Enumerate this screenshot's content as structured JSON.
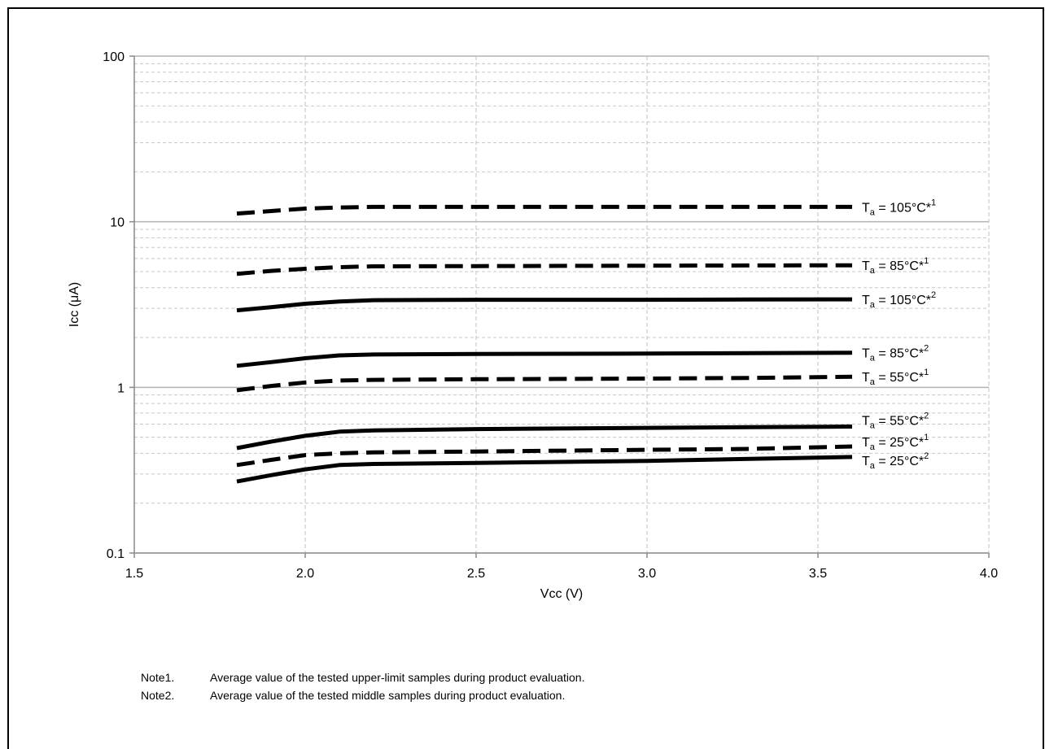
{
  "chart_data": {
    "type": "line",
    "xlabel": "Vcc (V)",
    "ylabel": "Icc (μA)",
    "xlim": [
      1.5,
      4.0
    ],
    "ylim": [
      0.1,
      100
    ],
    "yscale": "log",
    "x_ticks": [
      "1.5",
      "2.0",
      "2.5",
      "3.0",
      "3.5",
      "4.0"
    ],
    "y_ticks": [
      "0.1",
      "1",
      "10",
      "100"
    ],
    "grid": true,
    "series": [
      {
        "label_main": "T",
        "label_sub": "a",
        "label_rest": " = 105°C*",
        "label_sup": "1",
        "style": "dashed",
        "points": [
          [
            1.8,
            11.2
          ],
          [
            1.9,
            11.6
          ],
          [
            2.0,
            12.0
          ],
          [
            2.1,
            12.2
          ],
          [
            2.2,
            12.3
          ],
          [
            2.5,
            12.3
          ],
          [
            3.0,
            12.3
          ],
          [
            3.3,
            12.3
          ],
          [
            3.6,
            12.3
          ]
        ]
      },
      {
        "label_main": "T",
        "label_sub": "a",
        "label_rest": " = 85°C*",
        "label_sup": "1",
        "style": "dashed",
        "points": [
          [
            1.8,
            4.85
          ],
          [
            1.9,
            5.05
          ],
          [
            2.0,
            5.2
          ],
          [
            2.1,
            5.32
          ],
          [
            2.2,
            5.38
          ],
          [
            2.5,
            5.4
          ],
          [
            3.0,
            5.43
          ],
          [
            3.3,
            5.45
          ],
          [
            3.6,
            5.46
          ]
        ]
      },
      {
        "label_main": "T",
        "label_sub": "a",
        "label_rest": " = 105°C*",
        "label_sup": "2",
        "style": "solid",
        "points": [
          [
            1.8,
            2.92
          ],
          [
            1.9,
            3.05
          ],
          [
            2.0,
            3.2
          ],
          [
            2.1,
            3.3
          ],
          [
            2.2,
            3.36
          ],
          [
            2.5,
            3.38
          ],
          [
            3.0,
            3.38
          ],
          [
            3.3,
            3.39
          ],
          [
            3.6,
            3.4
          ]
        ]
      },
      {
        "label_main": "T",
        "label_sub": "a",
        "label_rest": " = 85°C*",
        "label_sup": "2",
        "style": "solid",
        "points": [
          [
            1.8,
            1.35
          ],
          [
            1.9,
            1.42
          ],
          [
            2.0,
            1.5
          ],
          [
            2.1,
            1.56
          ],
          [
            2.2,
            1.58
          ],
          [
            2.5,
            1.59
          ],
          [
            3.0,
            1.6
          ],
          [
            3.3,
            1.61
          ],
          [
            3.6,
            1.62
          ]
        ]
      },
      {
        "label_main": "T",
        "label_sub": "a",
        "label_rest": " = 55°C*",
        "label_sup": "1",
        "style": "dashed",
        "points": [
          [
            1.8,
            0.96
          ],
          [
            1.9,
            1.02
          ],
          [
            2.0,
            1.07
          ],
          [
            2.1,
            1.1
          ],
          [
            2.2,
            1.11
          ],
          [
            2.5,
            1.12
          ],
          [
            3.0,
            1.13
          ],
          [
            3.3,
            1.14
          ],
          [
            3.6,
            1.16
          ]
        ]
      },
      {
        "label_main": "T",
        "label_sub": "a",
        "label_rest": " = 55°C*",
        "label_sup": "2",
        "style": "solid",
        "points": [
          [
            1.8,
            0.43
          ],
          [
            1.9,
            0.47
          ],
          [
            2.0,
            0.51
          ],
          [
            2.1,
            0.54
          ],
          [
            2.2,
            0.55
          ],
          [
            2.5,
            0.56
          ],
          [
            3.0,
            0.57
          ],
          [
            3.3,
            0.575
          ],
          [
            3.6,
            0.58
          ]
        ]
      },
      {
        "label_main": "T",
        "label_sub": "a",
        "label_rest": " = 25°C*",
        "label_sup": "1",
        "style": "dashed",
        "points": [
          [
            1.8,
            0.34
          ],
          [
            1.9,
            0.365
          ],
          [
            2.0,
            0.39
          ],
          [
            2.1,
            0.4
          ],
          [
            2.2,
            0.405
          ],
          [
            2.5,
            0.41
          ],
          [
            3.0,
            0.42
          ],
          [
            3.3,
            0.425
          ],
          [
            3.6,
            0.44
          ]
        ]
      },
      {
        "label_main": "T",
        "label_sub": "a",
        "label_rest": " = 25°C*",
        "label_sup": "2",
        "style": "solid",
        "points": [
          [
            1.8,
            0.27
          ],
          [
            1.9,
            0.295
          ],
          [
            2.0,
            0.32
          ],
          [
            2.1,
            0.34
          ],
          [
            2.2,
            0.345
          ],
          [
            2.5,
            0.35
          ],
          [
            3.0,
            0.36
          ],
          [
            3.3,
            0.37
          ],
          [
            3.6,
            0.38
          ]
        ]
      }
    ]
  },
  "notes": [
    {
      "key": "Note1.",
      "text": "Average value of the tested upper-limit samples during product evaluation."
    },
    {
      "key": "Note2.",
      "text": "Average value of the tested middle samples during product evaluation."
    }
  ]
}
